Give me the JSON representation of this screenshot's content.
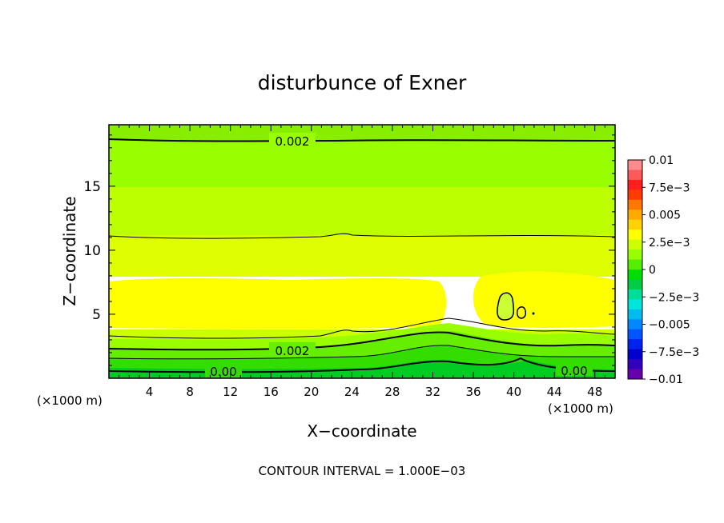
{
  "chart_data": {
    "type": "heatmap",
    "title": "disturbunce of Exner",
    "xlabel": "X−coordinate",
    "ylabel": "Z−coordinate",
    "x_unit_label": "(×1000 m)",
    "y_unit_label": "(×1000 m)",
    "xlim": [
      0,
      50
    ],
    "ylim": [
      0,
      19.8
    ],
    "x_ticks": [
      4,
      8,
      12,
      16,
      20,
      24,
      28,
      32,
      36,
      40,
      44,
      48
    ],
    "y_ticks": [
      5,
      10,
      15
    ],
    "colorbar": {
      "range": [
        -0.01,
        0.01
      ],
      "tick_labels": [
        "0.01",
        "7.5e−3",
        "0.005",
        "2.5e−3",
        "0",
        "−2.5e−3",
        "−0.005",
        "−7.5e−3",
        "−0.01"
      ],
      "tick_values": [
        0.01,
        0.0075,
        0.005,
        0.0025,
        0,
        -0.0025,
        -0.005,
        -0.0075,
        -0.01
      ],
      "colors": [
        "#ff8c8c",
        "#ff5a5a",
        "#ff1e1e",
        "#ff3c00",
        "#ff7800",
        "#ffaa00",
        "#ffd200",
        "#ffff00",
        "#ccff00",
        "#99ff00",
        "#55ee00",
        "#00dd00",
        "#00cc44",
        "#00dd99",
        "#00e6dd",
        "#00bbee",
        "#0088ff",
        "#0055ff",
        "#0022ee",
        "#0000cc",
        "#3300bb",
        "#6600aa"
      ]
    },
    "contour_labels": [
      "0.002",
      "0.002",
      "0.00",
      "0.00"
    ],
    "contour_interval_text": "CONTOUR INTERVAL = 1.000E−03",
    "levels": {
      "description_values": [
        0.002,
        0.003,
        0.004,
        0.002,
        0.001,
        0.0
      ],
      "bands": [
        {
          "z_range": [
            18.8,
            19.8
          ],
          "value": 0.0015
        },
        {
          "z_range": [
            14.8,
            18.8
          ],
          "value": 0.0022
        },
        {
          "z_range": [
            11.2,
            14.8
          ],
          "value": 0.0028
        },
        {
          "z_range": [
            8.0,
            11.2
          ],
          "value": 0.0033
        },
        {
          "z_range": [
            4.2,
            8.0
          ],
          "value": 0.0039
        },
        {
          "z_range": [
            3.0,
            4.2
          ],
          "value": 0.0033
        },
        {
          "z_range": [
            2.2,
            3.0
          ],
          "value": 0.0026
        },
        {
          "z_range": [
            1.5,
            2.2
          ],
          "value": 0.0019
        },
        {
          "z_range": [
            0.8,
            1.5
          ],
          "value": 0.0013
        },
        {
          "z_range": [
            0.3,
            0.8
          ],
          "value": 0.0006
        },
        {
          "z_range": [
            0.0,
            0.3
          ],
          "value": 0.0001
        }
      ]
    }
  }
}
